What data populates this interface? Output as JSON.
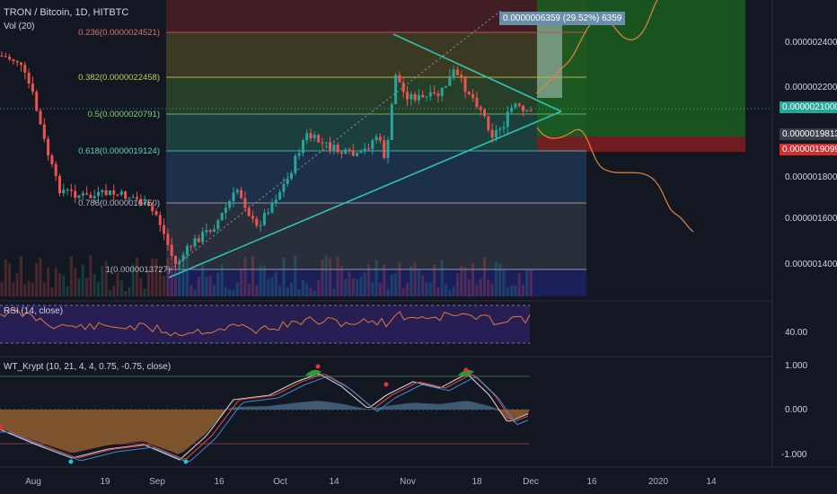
{
  "header": {
    "symbol": "TRON / Bitcoin, 1D, HITBTC",
    "volume": "Vol (20)"
  },
  "rsi_panel": {
    "title": "RSI (14, close)",
    "level_label": "40.00"
  },
  "wt_panel": {
    "title": "WT_Krypt (10, 21, 4, 4, 0.75, -0.75, close)",
    "axis": [
      "1.000",
      "0.000",
      "-1.000"
    ]
  },
  "price_axis": [
    "0.0000024000",
    "0.0000022000",
    "0.0000018000",
    "0.0000016000",
    "0.0000014000"
  ],
  "price_badges": {
    "current": "0.0000021000",
    "mid": "0.0000019813",
    "red": "0.0000019099"
  },
  "projection_box": "0.0000006359 (29.52%) 6359",
  "fib_levels": [
    {
      "label": "0.236(0.0000024521)",
      "color": "#c05050"
    },
    {
      "label": "0.382(0.0000022458)",
      "color": "#b5b54a"
    },
    {
      "label": "0.5(0.0000020791)",
      "color": "#60b060"
    },
    {
      "label": "0.618(0.0000019124)",
      "color": "#40b0a0"
    },
    {
      "label": "0.786(0.0000016750)",
      "color": "#9098a8"
    },
    {
      "label": "1(0.0000013727)",
      "color": "#9098a8"
    }
  ],
  "x_axis": [
    "Aug",
    "19",
    "Sep",
    "16",
    "Oct",
    "14",
    "Nov",
    "18",
    "Dec",
    "16",
    "2020",
    "14"
  ],
  "colors": {
    "bg": "#131722",
    "up": "#26a69a",
    "down": "#ef5350",
    "triangle": "#2fc3b0",
    "rsi": "#e07a3a",
    "projection": "#e8843a"
  },
  "chart_data": {
    "type": "candlestick",
    "title": "TRON / Bitcoin, 1D, HITBTC",
    "y_axis_ticks": [
      1.4e-06,
      1.6e-06,
      1.8e-06,
      2.2e-06,
      2.4e-06
    ],
    "ylim": [
      1.29e-06,
      2.63e-06
    ],
    "fib_retracement": [
      2.4521e-06,
      2.2458e-06,
      2.0791e-06,
      1.9124e-06,
      1.675e-06,
      1.3727e-06
    ],
    "last_price": 2.1e-06,
    "x_ticks": [
      "Aug",
      "19",
      "Sep",
      "16",
      "Oct",
      "14",
      "Nov",
      "18",
      "Dec",
      "16",
      "2020",
      "14"
    ],
    "series": [
      {
        "name": "RSI (14, close)",
        "level": 40
      },
      {
        "name": "WT_Krypt (10, 21, 4, 4, 0.75, -0.75, close)",
        "range": [
          -1,
          1
        ]
      }
    ]
  }
}
